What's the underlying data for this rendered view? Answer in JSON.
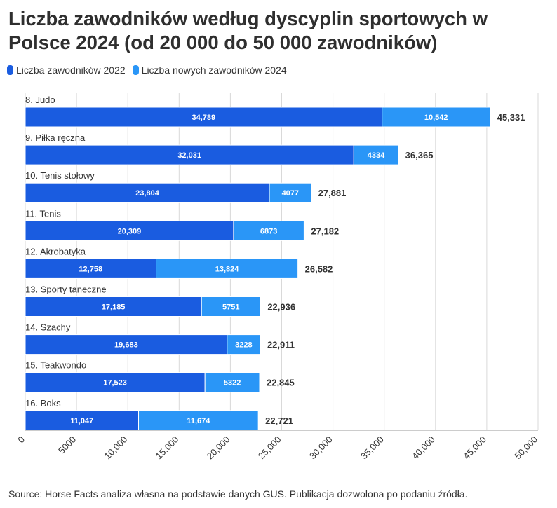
{
  "title": "Liczba zawodników według dyscyplin sportowych w Polsce 2024 (od 20 000 do 50 000 zawodników)",
  "legend": [
    {
      "label": "Liczba zawodników 2022",
      "color": "#1a5ce0"
    },
    {
      "label": "Liczba nowych zawodników 2024",
      "color": "#2a96f7"
    }
  ],
  "source": "Source: Horse Facts analiza własna na podstawie danych GUS. Publikacja dozwolona po podaniu źródła.",
  "chart_data": {
    "type": "bar",
    "orientation": "horizontal",
    "stacked": true,
    "categories": [
      "8. Judo",
      "9. Piłka ręczna",
      "10. Tenis stołowy",
      "11. Tenis",
      "12. Akrobatyka",
      "13. Sporty taneczne",
      "14. Szachy",
      "15. Teakwondo",
      "16. Boks"
    ],
    "series": [
      {
        "name": "Liczba zawodników 2022",
        "color": "#1a5ce0",
        "values": [
          34789,
          32031,
          23804,
          20309,
          12758,
          17185,
          19683,
          17523,
          11047
        ],
        "labels": [
          "34,789",
          "32,031",
          "23,804",
          "20,309",
          "12,758",
          "17,185",
          "19,683",
          "17,523",
          "11,047"
        ]
      },
      {
        "name": "Liczba nowych zawodników 2024",
        "color": "#2a96f7",
        "values": [
          10542,
          4334,
          4077,
          6873,
          13824,
          5751,
          3228,
          5322,
          11674
        ],
        "labels": [
          "10,542",
          "4334",
          "4077",
          "6873",
          "13,824",
          "5751",
          "3228",
          "5322",
          "11,674"
        ]
      }
    ],
    "totals": [
      45331,
      36365,
      27881,
      27182,
      26582,
      22936,
      22911,
      22845,
      22721
    ],
    "total_labels": [
      "45,331",
      "36,365",
      "27,881",
      "27,182",
      "26,582",
      "22,936",
      "22,911",
      "22,845",
      "22,721"
    ],
    "xlim": [
      0,
      50000
    ],
    "xticks": [
      0,
      5000,
      10000,
      15000,
      20000,
      25000,
      30000,
      35000,
      40000,
      45000,
      50000
    ],
    "xtick_labels": [
      "0",
      "5000",
      "10,000",
      "15,000",
      "20,000",
      "25,000",
      "30,000",
      "35,000",
      "40,000",
      "45,000",
      "50,000"
    ],
    "grid": true,
    "legend_position": "top-left"
  }
}
